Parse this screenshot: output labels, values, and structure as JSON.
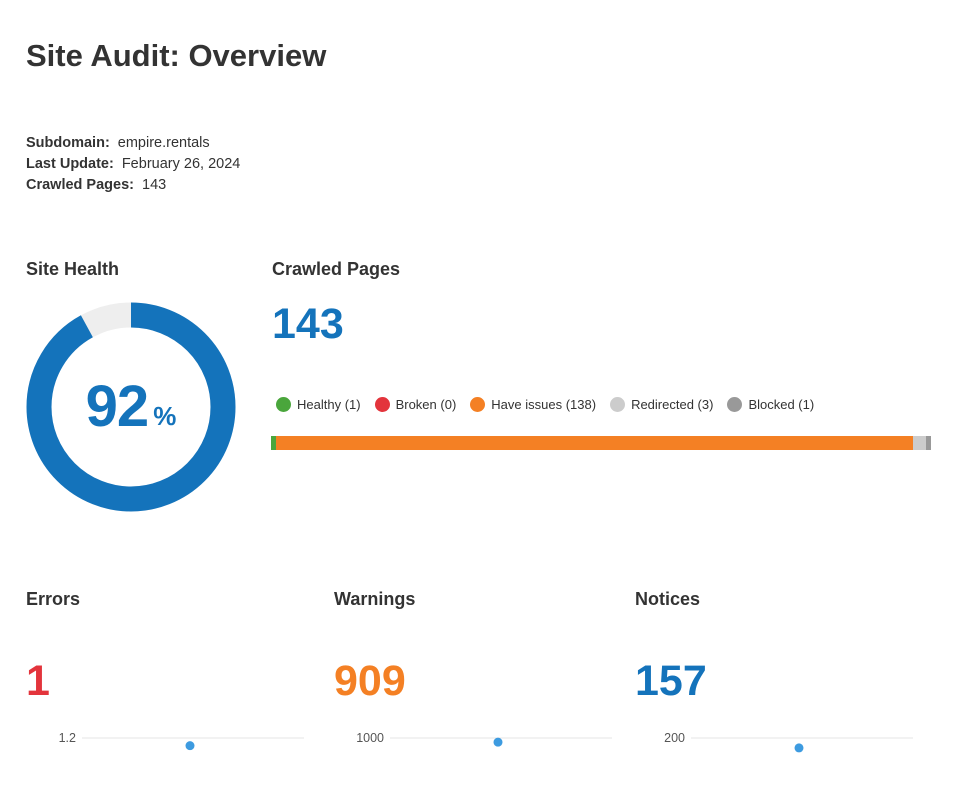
{
  "page": {
    "title": "Site Audit: Overview"
  },
  "meta": {
    "subdomain_label": "Subdomain:",
    "subdomain_value": "empire.rentals",
    "last_update_label": "Last Update:",
    "last_update_value": "February 26, 2024",
    "crawled_label": "Crawled Pages:",
    "crawled_value": "143"
  },
  "site_health": {
    "title": "Site Health",
    "value": "92",
    "unit": "%",
    "percent": 92,
    "color": "#1473bb",
    "track_color": "#eeeeee"
  },
  "crawled_pages": {
    "title": "Crawled Pages",
    "total": "143",
    "categories": [
      {
        "label": "Healthy (1)",
        "count": 1,
        "color": "#4aa63c"
      },
      {
        "label": "Broken (0)",
        "count": 0,
        "color": "#e3343c"
      },
      {
        "label": "Have issues (138)",
        "count": 138,
        "color": "#f48024"
      },
      {
        "label": "Redirected (3)",
        "count": 3,
        "color": "#cccccc"
      },
      {
        "label": "Blocked (1)",
        "count": 1,
        "color": "#999999"
      }
    ]
  },
  "errors": {
    "title": "Errors",
    "value": "1",
    "color": "#e3343c",
    "chart_data": {
      "type": "scatter",
      "tick_label": "1.2",
      "tick_value": 1.2,
      "ylim": [
        0,
        1.2
      ],
      "points": [
        1
      ]
    }
  },
  "warnings": {
    "title": "Warnings",
    "value": "909",
    "color": "#f48024",
    "chart_data": {
      "type": "scatter",
      "tick_label": "1000",
      "tick_value": 1000,
      "ylim": [
        0,
        1000
      ],
      "points": [
        909
      ]
    }
  },
  "notices": {
    "title": "Notices",
    "value": "157",
    "color": "#1473bb",
    "chart_data": {
      "type": "scatter",
      "tick_label": "200",
      "tick_value": 200,
      "ylim": [
        0,
        200
      ],
      "points": [
        157
      ]
    }
  },
  "point_color": "#3d9be0"
}
